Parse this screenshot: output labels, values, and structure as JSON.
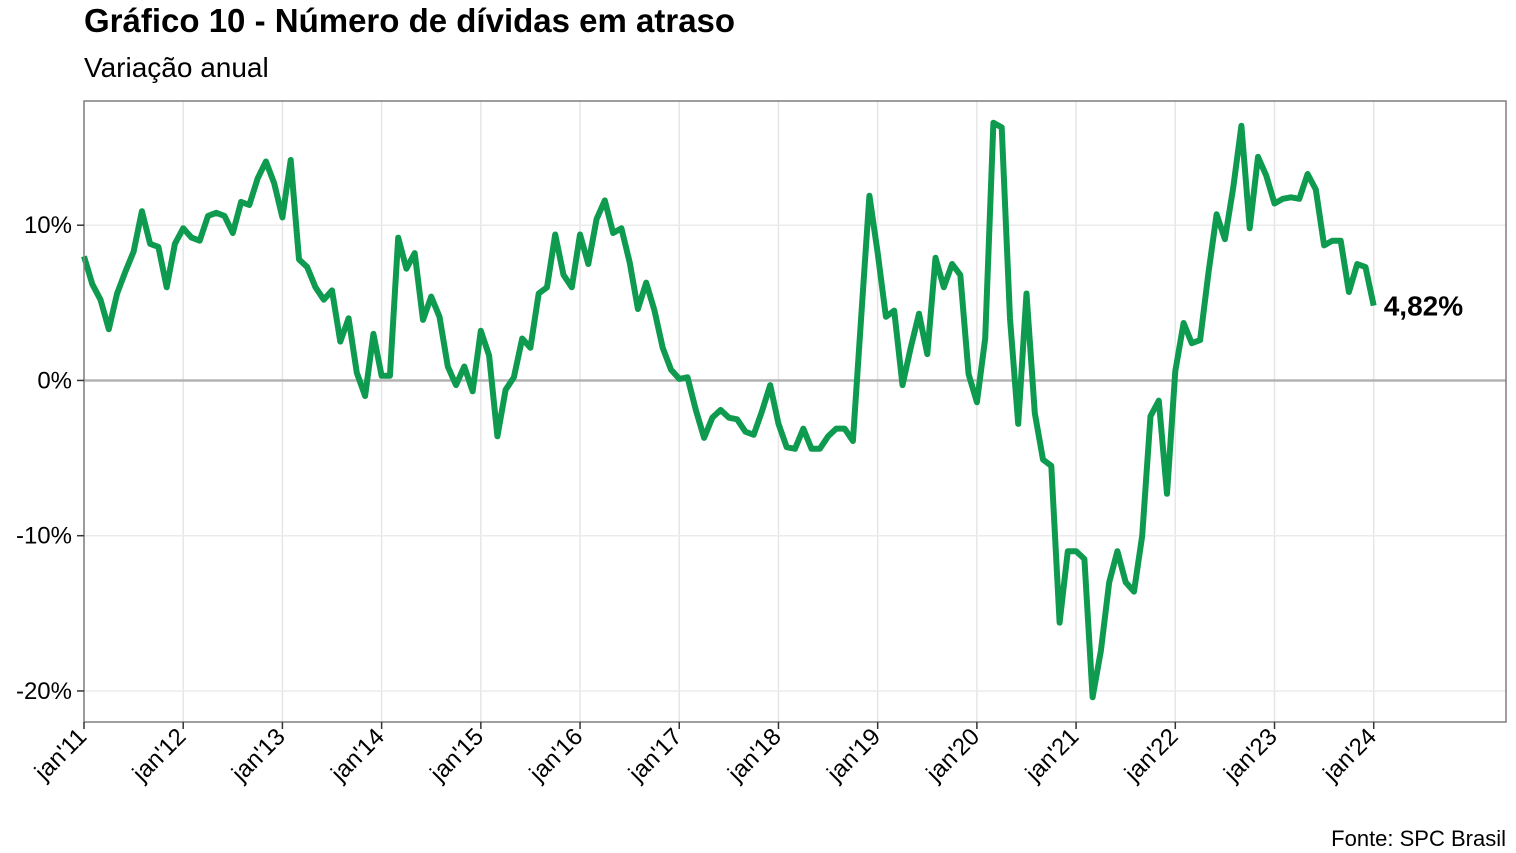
{
  "chart_data": {
    "type": "line",
    "title": "Gráfico 10 - Número de dívidas em atraso",
    "subtitle": "Variação anual",
    "source": "Fonte: SPC Brasil",
    "xlabel": "",
    "ylabel": "",
    "ylim": [
      -22,
      18
    ],
    "yticks": [
      -20,
      -10,
      0,
      10
    ],
    "ytick_labels": [
      "-20%",
      "-10%",
      "0%",
      "10%"
    ],
    "xlim": [
      "2011-01",
      "2025-05"
    ],
    "xtick_labels": [
      "jan'11",
      "jan'12",
      "jan'13",
      "jan'14",
      "jan'15",
      "jan'16",
      "jan'17",
      "jan'18",
      "jan'19",
      "jan'20",
      "jan'21",
      "jan'22",
      "jan'23",
      "jan'24"
    ],
    "grid": true,
    "last_value_label": "4,82%",
    "series": [
      {
        "color": "#0e9b4f",
        "x": [
          "2011-01",
          "2011-02",
          "2011-03",
          "2011-04",
          "2011-05",
          "2011-06",
          "2011-07",
          "2011-08",
          "2011-09",
          "2011-10",
          "2011-11",
          "2011-12",
          "2012-01",
          "2012-02",
          "2012-03",
          "2012-04",
          "2012-05",
          "2012-06",
          "2012-07",
          "2012-08",
          "2012-09",
          "2012-10",
          "2012-11",
          "2012-12",
          "2013-01",
          "2013-02",
          "2013-03",
          "2013-04",
          "2013-05",
          "2013-06",
          "2013-07",
          "2013-08",
          "2013-09",
          "2013-10",
          "2013-11",
          "2013-12",
          "2014-01",
          "2014-02",
          "2014-03",
          "2014-04",
          "2014-05",
          "2014-06",
          "2014-07",
          "2014-08",
          "2014-09",
          "2014-10",
          "2014-11",
          "2014-12",
          "2015-01",
          "2015-02",
          "2015-03",
          "2015-04",
          "2015-05",
          "2015-06",
          "2015-07",
          "2015-08",
          "2015-09",
          "2015-10",
          "2015-11",
          "2015-12",
          "2016-01",
          "2016-02",
          "2016-03",
          "2016-04",
          "2016-05",
          "2016-06",
          "2016-07",
          "2016-08",
          "2016-09",
          "2016-10",
          "2016-11",
          "2016-12",
          "2017-01",
          "2017-02",
          "2017-03",
          "2017-04",
          "2017-05",
          "2017-06",
          "2017-07",
          "2017-08",
          "2017-09",
          "2017-10",
          "2017-11",
          "2017-12",
          "2018-01",
          "2018-02",
          "2018-03",
          "2018-04",
          "2018-05",
          "2018-06",
          "2018-07",
          "2018-08",
          "2018-09",
          "2018-10",
          "2018-11",
          "2018-12",
          "2019-01",
          "2019-02",
          "2019-03",
          "2019-04",
          "2019-05",
          "2019-06",
          "2019-07",
          "2019-08",
          "2019-09",
          "2019-10",
          "2019-11",
          "2019-12",
          "2020-01",
          "2020-02",
          "2020-03",
          "2020-04",
          "2020-05",
          "2020-06",
          "2020-07",
          "2020-08",
          "2020-09",
          "2020-10",
          "2020-11",
          "2020-12",
          "2021-01",
          "2021-02",
          "2021-03",
          "2021-04",
          "2021-05",
          "2021-06",
          "2021-07",
          "2021-08",
          "2021-09",
          "2021-10",
          "2021-11",
          "2021-12",
          "2022-01",
          "2022-02",
          "2022-03",
          "2022-04",
          "2022-05",
          "2022-06",
          "2022-07",
          "2022-08",
          "2022-09",
          "2022-10",
          "2022-11",
          "2022-12",
          "2023-01",
          "2023-02",
          "2023-03",
          "2023-04",
          "2023-05",
          "2023-06",
          "2023-07",
          "2023-08",
          "2023-09",
          "2023-10",
          "2023-11",
          "2023-12",
          "2024-01"
        ],
        "y": [
          8.0,
          6.2,
          5.2,
          3.3,
          5.6,
          7.0,
          8.3,
          10.9,
          8.8,
          8.6,
          6.0,
          8.8,
          9.8,
          9.2,
          9.0,
          10.6,
          10.8,
          10.6,
          9.5,
          11.5,
          11.3,
          13.0,
          14.1,
          12.7,
          10.5,
          14.2,
          7.8,
          7.3,
          6.0,
          5.2,
          5.8,
          2.5,
          4.0,
          0.5,
          -1.0,
          3.0,
          0.3,
          0.3,
          9.2,
          7.2,
          8.2,
          3.9,
          5.4,
          4.1,
          0.9,
          -0.3,
          0.9,
          -0.7,
          3.2,
          1.6,
          -3.6,
          -0.6,
          0.2,
          2.7,
          2.1,
          5.6,
          6.0,
          9.4,
          6.8,
          6.0,
          9.4,
          7.5,
          10.4,
          11.6,
          9.5,
          9.8,
          7.6,
          4.6,
          6.3,
          4.5,
          2.1,
          0.7,
          0.1,
          0.2,
          -1.9,
          -3.7,
          -2.4,
          -1.9,
          -2.4,
          -2.5,
          -3.3,
          -3.5,
          -2.0,
          -0.3,
          -2.8,
          -4.3,
          -4.4,
          -3.1,
          -4.4,
          -4.4,
          -3.6,
          -3.1,
          -3.1,
          -3.9,
          4.0,
          11.9,
          8.2,
          4.1,
          4.5,
          -0.3,
          2.1,
          4.3,
          1.7,
          7.9,
          6.0,
          7.5,
          6.8,
          0.4,
          -1.4,
          2.7,
          16.6,
          16.3,
          4.0,
          -2.8,
          5.6,
          -2.1,
          -5.1,
          -5.5,
          -15.6,
          -11.0,
          -11.0,
          -11.5,
          -20.4,
          -17.4,
          -13.0,
          -11.0,
          -13.0,
          -13.6,
          -10.0,
          -2.3,
          -1.3,
          -7.3,
          0.6,
          3.7,
          2.4,
          2.6,
          6.9,
          10.7,
          9.1,
          12.4,
          16.4,
          9.8,
          14.4,
          13.2,
          11.4,
          11.7,
          11.8,
          11.7,
          13.3,
          12.3,
          8.7,
          9.0,
          9.0,
          5.7,
          7.5,
          7.3,
          4.82
        ]
      }
    ]
  }
}
